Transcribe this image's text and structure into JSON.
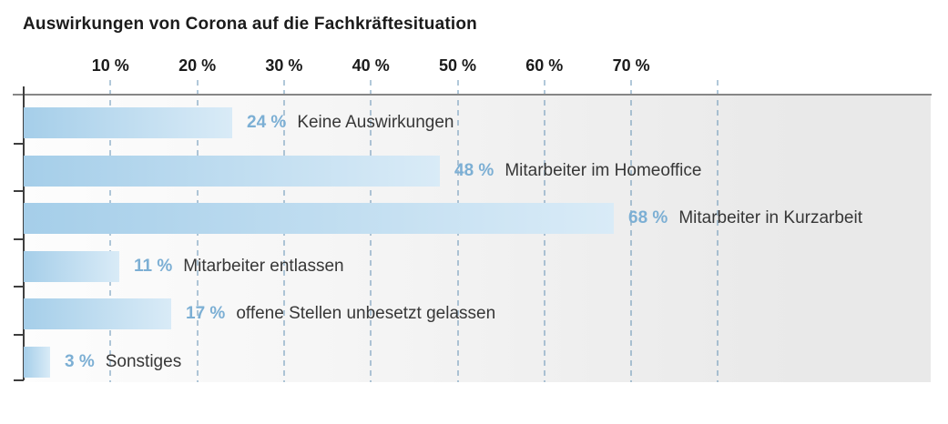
{
  "title": "Auswirkungen von Corona auf die Fachkräftesituation",
  "chart_data": {
    "type": "bar",
    "orientation": "horizontal",
    "title": "Auswirkungen von Corona auf die Fachkräftesituation",
    "categories": [
      "Keine Auswirkungen",
      "Mitarbeiter im Homeoffice",
      "Mitarbeiter in Kurzarbeit",
      "Mitarbeiter entlassen",
      "offene Stellen unbesetzt gelassen",
      "Sonstiges"
    ],
    "values": [
      24,
      48,
      68,
      11,
      17,
      3
    ],
    "value_labels": [
      "24 %",
      "48 %",
      "68 %",
      "11 %",
      "17 %",
      "3 %"
    ],
    "xlabel": "",
    "ylabel": "",
    "xlim": [
      0,
      80
    ],
    "x_axis": {
      "tick_values": [
        10,
        20,
        30,
        40,
        50,
        60,
        70
      ],
      "tick_labels": [
        "10 %",
        "20 %",
        "30 %",
        "40 %",
        "50 %",
        "60 %",
        "70 %"
      ],
      "gridline_values": [
        10,
        20,
        30,
        40,
        50,
        60,
        70,
        80
      ],
      "grid_style": "dashed"
    },
    "legend": "none",
    "colors": {
      "bar_gradient_start": "#a5cee9",
      "bar_gradient_end": "#d9ebf7",
      "value_label": "#7cafd4",
      "category_label": "#373737",
      "axis_line": "#868686",
      "y_axis_line": "#3e3e3e",
      "gridline": "#9fc2d8",
      "plot_bg_left": "#fdfdfd",
      "plot_bg_right": "#e9e9e9",
      "title_text": "#1b1b1b"
    }
  }
}
